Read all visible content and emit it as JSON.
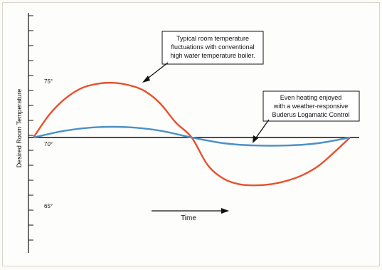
{
  "chart_data": {
    "type": "line",
    "title": "",
    "ylabel": "Desired Room Temperature",
    "xlabel": "Time",
    "y_tick_labels": [
      "75°",
      "70°",
      "65°"
    ],
    "series": [
      {
        "name": "Typical room temperature fluctuations with conventional high water temperature boiler.",
        "color": "#e8502a",
        "x": [
          0,
          0.05,
          0.1,
          0.15,
          0.2,
          0.25,
          0.3,
          0.35,
          0.4,
          0.45,
          0.5,
          0.55,
          0.6,
          0.65,
          0.7,
          0.75,
          0.8,
          0.85,
          0.9,
          0.95,
          1.0
        ],
        "y": [
          70,
          72.0,
          73.4,
          74.3,
          74.7,
          74.8,
          74.6,
          74.1,
          73.0,
          71.3,
          70,
          67.6,
          66.4,
          65.9,
          65.8,
          65.9,
          66.2,
          66.7,
          67.5,
          68.7,
          70
        ]
      },
      {
        "name": "Even heating enjoyed with a weather-responsive Buderus Logamatic Control",
        "color": "#4a90c8",
        "x": [
          0,
          0.1,
          0.2,
          0.3,
          0.4,
          0.5,
          0.6,
          0.7,
          0.8,
          0.9,
          1.0
        ],
        "y": [
          70,
          70.6,
          70.9,
          70.9,
          70.6,
          70,
          69.5,
          69.3,
          69.3,
          69.5,
          70
        ]
      }
    ],
    "annotations": [
      {
        "lines": [
          "Typical room temperature",
          "fluctuations with conventional",
          "high water temperature boiler."
        ]
      },
      {
        "lines": [
          "Even heating enjoyed",
          "with a weather-responsive",
          "Buderus Logamatic Control"
        ]
      }
    ]
  }
}
